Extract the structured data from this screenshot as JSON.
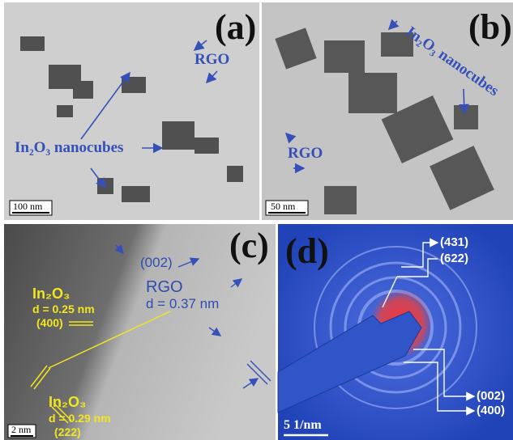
{
  "panels": [
    {
      "label": "(a)",
      "rgo": "RGO",
      "nanocubes": "In₂O₃ nanocubes",
      "scale_bar": "100 nm"
    },
    {
      "label": "(b)",
      "nanocubes": "In₂O₃ nanocubes",
      "rgo": "RGO",
      "scale_bar": "50 nm"
    },
    {
      "label": "(c)",
      "rgo_plane": "(002)",
      "rgo": "RGO",
      "rgo_spacing": "d = 0.37 nm",
      "in2o3_a": "In₂O₃",
      "spacing_a": "d = 0.25 nm",
      "plane_a": "(400)",
      "in2o3_b": "In₂O₃",
      "spacing_b": "d = 0.29 nm",
      "plane_b": "(222)",
      "scale_bar": "2 nm"
    },
    {
      "label": "(d)",
      "rings": [
        "(431)",
        "(622)",
        "(002)",
        "(400)"
      ],
      "scale_bar": "5 1/nm"
    }
  ]
}
